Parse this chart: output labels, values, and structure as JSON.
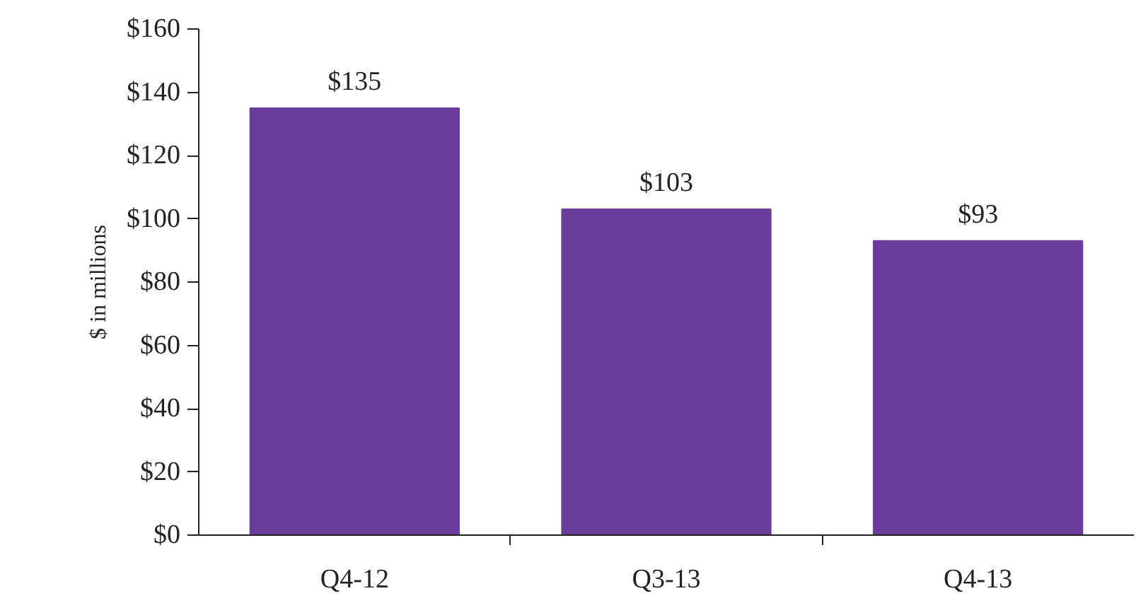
{
  "chart_data": {
    "type": "bar",
    "ylabel": "$ in millions",
    "categories": [
      "Q4-12",
      "Q3-13",
      "Q4-13"
    ],
    "values": [
      135,
      103,
      93
    ],
    "color": "#6a3c9c",
    "value_labels": [
      "$135",
      "$103",
      "$93"
    ],
    "ylim": [
      0,
      160
    ],
    "yticks": [
      {
        "value": 0,
        "label": "$0"
      },
      {
        "value": 20,
        "label": "$20"
      },
      {
        "value": 40,
        "label": "$40"
      },
      {
        "value": 60,
        "label": "$60"
      },
      {
        "value": 80,
        "label": "$80"
      },
      {
        "value": 100,
        "label": "$100"
      },
      {
        "value": 120,
        "label": "$120"
      },
      {
        "value": 140,
        "label": "$140"
      },
      {
        "value": 160,
        "label": "$160"
      }
    ],
    "grid": false
  }
}
